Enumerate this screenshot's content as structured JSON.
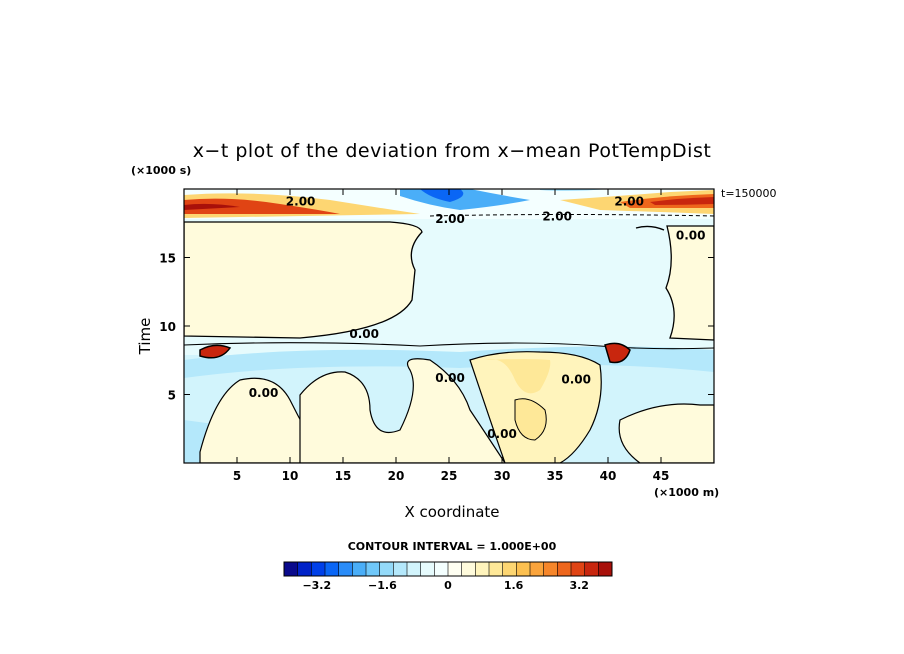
{
  "chart_data": {
    "type": "heatmap",
    "title": "x−t plot of the deviation from x−mean PotTempDist",
    "xlabel": "X coordinate",
    "ylabel": "Time",
    "x_unit_label": "(×1000 m)",
    "y_unit_label": "(×1000 s)",
    "timestamp_label": "t=150000",
    "xlim": [
      0,
      50
    ],
    "ylim": [
      0,
      20
    ],
    "x_ticks": [
      5,
      10,
      15,
      20,
      25,
      30,
      35,
      40,
      45
    ],
    "y_ticks": [
      5,
      10,
      15
    ],
    "contour_interval_label": "CONTOUR INTERVAL = 1.000E+00",
    "contour_labels": [
      {
        "text": "0.00",
        "x": 17,
        "y": 9.4
      },
      {
        "text": "0.00",
        "x": 7.5,
        "y": 5.1
      },
      {
        "text": "0.00",
        "x": 25.1,
        "y": 6.2
      },
      {
        "text": "0.00",
        "x": 37.0,
        "y": 6.1
      },
      {
        "text": "0.00",
        "x": 30.0,
        "y": 2.1
      },
      {
        "text": "0.00",
        "x": 47.8,
        "y": 16.6
      },
      {
        "text": "2.00",
        "x": 25.1,
        "y": 17.8
      },
      {
        "text": "2.00",
        "x": 35.2,
        "y": 18.0
      },
      {
        "text": "2.00",
        "x": 11,
        "y": 19.1
      },
      {
        "text": "2.00",
        "x": 42.0,
        "y": 19.1
      }
    ],
    "colorbar": {
      "min": -4.0,
      "max": 4.0,
      "tick_labels": [
        "−3.2",
        "−1.6",
        "0",
        "1.6",
        "3.2"
      ],
      "tick_values": [
        -3.2,
        -1.6,
        0,
        1.6,
        3.2
      ],
      "colors": [
        "#0a0a8c",
        "#0022c8",
        "#0040e8",
        "#0a66f5",
        "#2a8cf8",
        "#4aaef8",
        "#70c8fa",
        "#94daf9",
        "#b4e8fb",
        "#d2f4fc",
        "#e6fbfd",
        "#f4ffff",
        "#fffff2",
        "#fffbdc",
        "#fff4bc",
        "#fee898",
        "#fdd672",
        "#fcc050",
        "#faa43c",
        "#f6862a",
        "#ee661c",
        "#e04414",
        "#c8260e",
        "#a8100a"
      ]
    }
  }
}
